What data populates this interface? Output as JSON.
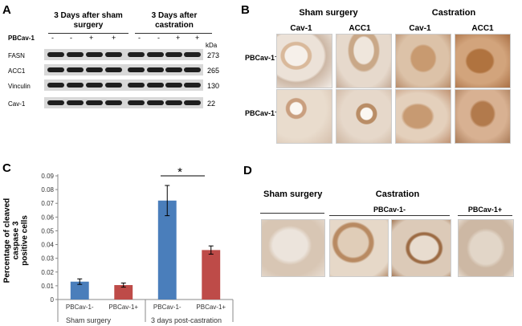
{
  "panelA": {
    "label": "A",
    "group1": "3 Days after sham surgery",
    "group1_l1": "3 Days after sham",
    "group1_l2": "surgery",
    "group2": "3 Days after castration",
    "group2_l1": "3 Days after",
    "group2_l2": "castration",
    "row_label": "PBCav-1",
    "signs": [
      "-",
      "-",
      "+",
      "+",
      "-",
      "-",
      "+",
      "+"
    ],
    "kda": "kDa",
    "blots": [
      {
        "name": "FASN",
        "kda": "273"
      },
      {
        "name": "ACC1",
        "kda": "265"
      },
      {
        "name": "Vinculin",
        "kda": "130"
      },
      {
        "name": "Cav-1",
        "kda": "22"
      }
    ]
  },
  "panelB": {
    "label": "B",
    "group1": "Sham surgery",
    "group2": "Castration",
    "cols": [
      "Cav-1",
      "ACC1",
      "Cav-1",
      "ACC1"
    ],
    "rows": [
      "PBCav-1⁻",
      "PBCav-1⁺"
    ]
  },
  "panelC": {
    "label": "C",
    "ylabel": "Percentage of cleaved caspase 3 positive cells",
    "ylabel_l1": "Percentage of cleaved caspase 3",
    "ylabel_l2": "positive cells",
    "yticks": [
      "0",
      "0.01",
      "0.02",
      "0.03",
      "0.04",
      "0.05",
      "0.06",
      "0.07",
      "0.08",
      "0.09"
    ],
    "significance": "*",
    "group_labels": [
      "Sham surgery",
      "3 days post-castration"
    ],
    "colors": {
      "blue": "#4a7ebb",
      "red": "#be4b48"
    }
  },
  "chart_data": {
    "type": "bar",
    "categories": [
      "PBCav-1-",
      "PBCav-1+",
      "PBCav-1-",
      "PBCav-1+"
    ],
    "groups": [
      "Sham surgery",
      "Sham surgery",
      "3 days post-castration",
      "3 days post-castration"
    ],
    "values": [
      0.013,
      0.0105,
      0.072,
      0.036
    ],
    "errors": [
      0.002,
      0.0015,
      0.011,
      0.003
    ],
    "colors": [
      "#4a7ebb",
      "#be4b48",
      "#4a7ebb",
      "#be4b48"
    ],
    "ylabel": "Percentage of cleaved caspase 3 positive cells",
    "ylim": [
      0,
      0.09
    ],
    "annotation": "*"
  },
  "panelD": {
    "label": "D",
    "group1": "Sham surgery",
    "group2": "Castration",
    "sub1": "PBCav-1-",
    "sub2": "PBCav-1+"
  }
}
